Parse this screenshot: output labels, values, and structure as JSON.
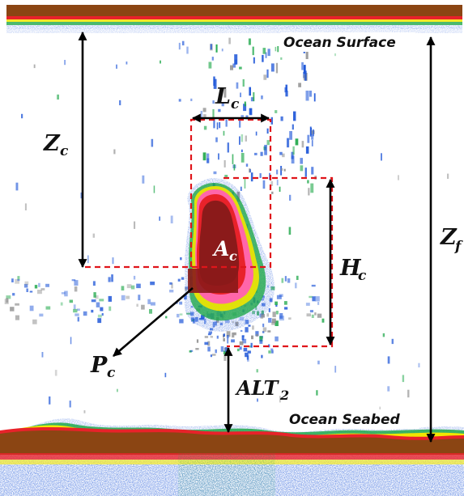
{
  "labels": {
    "ocean_surface": "Ocean Surface",
    "ocean_seabed": "Ocean Seabed",
    "zc_main": "Z",
    "zc_sub": "c",
    "lc_main": "L",
    "lc_sub": "c",
    "ac_main": "A",
    "ac_sub": "c",
    "hc_main": "H",
    "hc_sub": "c",
    "pc_main": "P",
    "pc_sub": "c",
    "zf_main": "Z",
    "zf_sub": "f",
    "alt_main": "ALT",
    "alt_sub": "2"
  },
  "colors": {
    "surface_band": "#8b4513",
    "seabed_band": "#8b4513",
    "school_core": "#8b1a1a",
    "echo_red": "#e8222a",
    "echo_pink": "#ff66aa",
    "echo_yellow": "#f2e600",
    "echo_green": "#1fa84a",
    "echo_blue": "#1e56d8",
    "echo_gray": "#8c8c8c",
    "dashed_box": "#e0151b",
    "arrow": "#000000"
  }
}
